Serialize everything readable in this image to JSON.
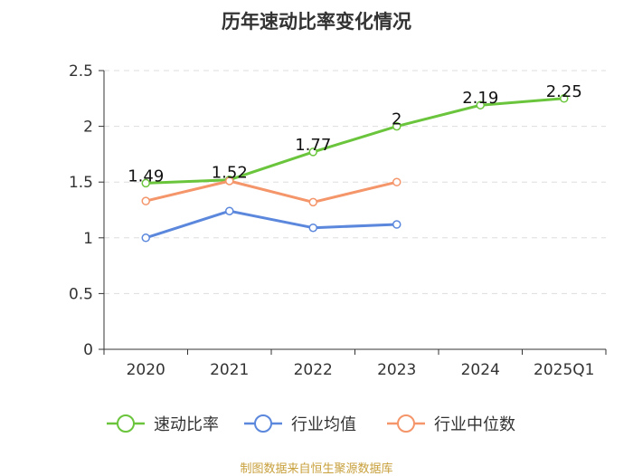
{
  "chart_data": {
    "type": "line",
    "title": "历年速动比率变化情况",
    "categories": [
      "2020",
      "2021",
      "2022",
      "2023",
      "2024",
      "2025Q1"
    ],
    "ylim": [
      0,
      2.5
    ],
    "yticks": [
      "0",
      "0.5",
      "1",
      "1.5",
      "2",
      "2.5"
    ],
    "grid": true,
    "legend_position": "bottom",
    "series": [
      {
        "name": "速动比率",
        "color": "#6ac53c",
        "values": [
          1.49,
          1.52,
          1.77,
          2.0,
          2.19,
          2.25
        ],
        "labels": [
          "1.49",
          "1.52",
          "1.77",
          "2",
          "2.19",
          "2.25"
        ]
      },
      {
        "name": "行业均值",
        "color": "#5b87dc",
        "values": [
          1.0,
          1.24,
          1.09,
          1.12,
          null,
          null
        ]
      },
      {
        "name": "行业中位数",
        "color": "#f4956a",
        "values": [
          1.33,
          1.51,
          1.32,
          1.5,
          null,
          null
        ]
      }
    ]
  },
  "source": "制图数据来自恒生聚源数据库"
}
